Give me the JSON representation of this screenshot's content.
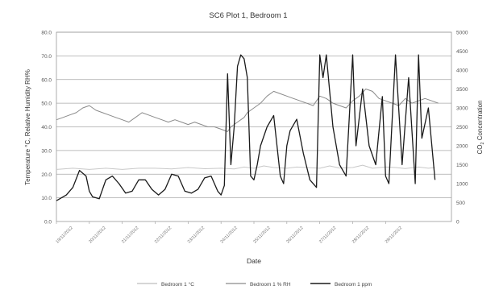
{
  "chart_data": {
    "type": "line",
    "title": "SC6 Plot 1, Bedroom 1",
    "xlabel": "Date",
    "ylabel": "Temperature °C, Relative Humidity RH%",
    "y2label_main": "CO",
    "y2label_sub": "2",
    "y2label_rest": " Concentration",
    "ylim": [
      0,
      80
    ],
    "y2lim": [
      0,
      5000
    ],
    "yticks": [
      "0.0",
      "10.0",
      "20.0",
      "30.0",
      "40.0",
      "50.0",
      "60.0",
      "70.0",
      "80.0"
    ],
    "y2ticks": [
      "0",
      "500",
      "1000",
      "1500",
      "2000",
      "2500",
      "3000",
      "3500",
      "4000",
      "4500",
      "5000"
    ],
    "xlim": [
      0,
      12
    ],
    "xticks": [
      {
        "x": 0,
        "label": "19/11/2012"
      },
      {
        "x": 1,
        "label": "20/11/2012"
      },
      {
        "x": 2,
        "label": "21/11/2012"
      },
      {
        "x": 3,
        "label": "22/11/2012"
      },
      {
        "x": 4,
        "label": "23/11/2012"
      },
      {
        "x": 5,
        "label": "24/11/2012"
      },
      {
        "x": 6,
        "label": "25/11/2012"
      },
      {
        "x": 7,
        "label": "26/11/2012"
      },
      {
        "x": 8,
        "label": "27/11/2012"
      },
      {
        "x": 9,
        "label": "28/11/2012"
      },
      {
        "x": 10,
        "label": "29/11/2012"
      }
    ],
    "grid": true,
    "legend": "bottom",
    "series": [
      {
        "name": "Bedroom 1 °C",
        "axis": "left",
        "color": "#c8c8c8",
        "x": [
          0,
          0.5,
          1,
          1.5,
          2,
          2.5,
          3,
          3.5,
          4,
          4.5,
          5,
          5.4,
          5.7,
          6,
          6.3,
          6.6,
          7,
          7.3,
          7.6,
          8,
          8.3,
          8.6,
          9,
          9.3,
          9.6,
          10,
          10.3,
          10.6,
          11,
          11.3,
          11.5
        ],
        "values": [
          22,
          22.5,
          22,
          22.5,
          22,
          22.5,
          22.5,
          22.2,
          22.8,
          22.3,
          22.5,
          22.2,
          23,
          22.5,
          23.5,
          22.8,
          22.5,
          23,
          22.8,
          22.5,
          23.5,
          22.6,
          22.8,
          23.8,
          22.5,
          23,
          22.8,
          22.4,
          23,
          22.5,
          22.8
        ]
      },
      {
        "name": "Bedroom 1 % RH",
        "axis": "left",
        "color": "#8a8a8a",
        "x": [
          0,
          0.2,
          0.4,
          0.6,
          0.8,
          1,
          1.2,
          1.4,
          1.6,
          1.8,
          2,
          2.2,
          2.4,
          2.6,
          2.8,
          3,
          3.2,
          3.4,
          3.6,
          3.8,
          4,
          4.2,
          4.4,
          4.6,
          4.8,
          5,
          5.2,
          5.3,
          5.5,
          5.7,
          5.8,
          6,
          6.2,
          6.4,
          6.6,
          6.8,
          7,
          7.2,
          7.4,
          7.6,
          7.8,
          8,
          8.2,
          8.4,
          8.6,
          8.8,
          9,
          9.2,
          9.4,
          9.6,
          9.8,
          10,
          10.2,
          10.4,
          10.6,
          10.8,
          11,
          11.2,
          11.4,
          11.6
        ],
        "values": [
          43,
          44,
          45,
          46,
          48,
          49,
          47,
          46,
          45,
          44,
          43,
          42,
          44,
          46,
          45,
          44,
          43,
          42,
          43,
          42,
          41,
          42,
          41,
          40,
          40,
          39,
          38,
          40,
          42,
          44,
          46,
          48,
          50,
          53,
          55,
          54,
          53,
          52,
          51,
          50,
          49,
          53,
          52,
          50,
          49,
          48,
          51,
          53,
          56,
          55,
          52,
          51,
          50,
          49,
          52,
          50,
          51,
          52,
          51,
          50
        ]
      },
      {
        "name": "Bedroom 1 ppm",
        "axis": "right",
        "color": "#1a1a1a",
        "x": [
          0,
          0.1,
          0.3,
          0.5,
          0.7,
          0.9,
          1,
          1.1,
          1.3,
          1.5,
          1.7,
          1.9,
          2.1,
          2.3,
          2.5,
          2.7,
          2.9,
          3.1,
          3.3,
          3.5,
          3.7,
          3.9,
          4.1,
          4.3,
          4.5,
          4.7,
          4.9,
          5.0,
          5.1,
          5.2,
          5.3,
          5.4,
          5.5,
          5.6,
          5.7,
          5.8,
          5.9,
          6.0,
          6.1,
          6.2,
          6.4,
          6.6,
          6.8,
          6.9,
          7.0,
          7.1,
          7.3,
          7.5,
          7.7,
          7.9,
          8.0,
          8.1,
          8.2,
          8.4,
          8.6,
          8.8,
          9.0,
          9.1,
          9.3,
          9.5,
          9.7,
          9.9,
          10.0,
          10.1,
          10.3,
          10.5,
          10.7,
          10.9,
          11.0,
          11.1,
          11.3,
          11.5
        ],
        "values": [
          550,
          600,
          700,
          900,
          1350,
          1200,
          800,
          650,
          600,
          1100,
          1200,
          1000,
          750,
          800,
          1100,
          1100,
          850,
          700,
          850,
          1250,
          1200,
          800,
          750,
          850,
          1150,
          1200,
          800,
          700,
          950,
          3900,
          1500,
          2500,
          4100,
          4400,
          4300,
          3800,
          1200,
          1100,
          1500,
          2000,
          2500,
          2800,
          1200,
          1000,
          2000,
          2400,
          2700,
          1800,
          1100,
          900,
          4400,
          3800,
          4400,
          2500,
          1500,
          1200,
          4400,
          2000,
          3500,
          2000,
          1500,
          3300,
          1200,
          1000,
          4400,
          1500,
          3800,
          1000,
          4400,
          2200,
          3000,
          1100
        ]
      }
    ]
  }
}
